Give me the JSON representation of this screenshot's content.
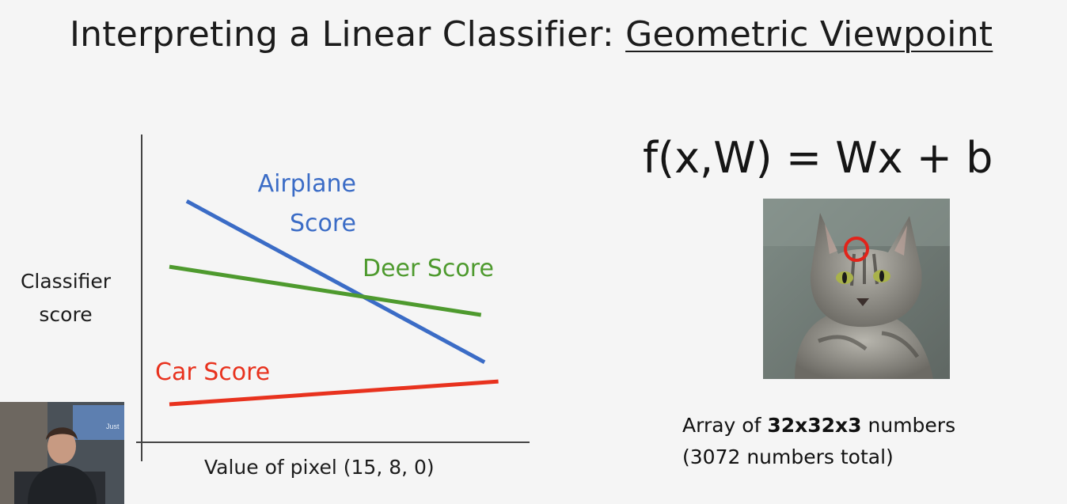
{
  "slide": {
    "title_prefix": "Interpreting a Linear Classifier: ",
    "title_underlined": "Geometric Viewpoint",
    "formula": "f(x,W) = Wx + b",
    "caption_line1_pre": "Array of ",
    "caption_line1_bold": "32x32x3",
    "caption_line1_post": " numbers",
    "caption_line2": "(3072 numbers total)",
    "webcam_overlay_text": "Just"
  },
  "chart_data": {
    "type": "line",
    "xlabel": "Value of pixel (15, 8, 0)",
    "ylabel": "Classifier score",
    "ylabel_lines": [
      "Classifier",
      "score"
    ],
    "x": [
      0,
      1
    ],
    "series": [
      {
        "name": "Airplane Score",
        "label_lines": [
          "Airplane",
          "Score"
        ],
        "values": [
          0.95,
          0.25
        ],
        "color": "#3b6cc6"
      },
      {
        "name": "Deer Score",
        "values": [
          0.66,
          0.46
        ],
        "color": "#4e9a2e"
      },
      {
        "name": "Car Score",
        "values": [
          0.14,
          0.23
        ],
        "color": "#e8321e"
      }
    ],
    "xlim": [
      -0.06,
      1.06
    ],
    "ylim": [
      0,
      1.15
    ],
    "grid": false,
    "legend": "none"
  },
  "colors": {
    "background": "#f5f5f5",
    "airplane": "#3b6cc6",
    "deer": "#4e9a2e",
    "car": "#e8321e",
    "marker_circle": "#e2231a"
  }
}
